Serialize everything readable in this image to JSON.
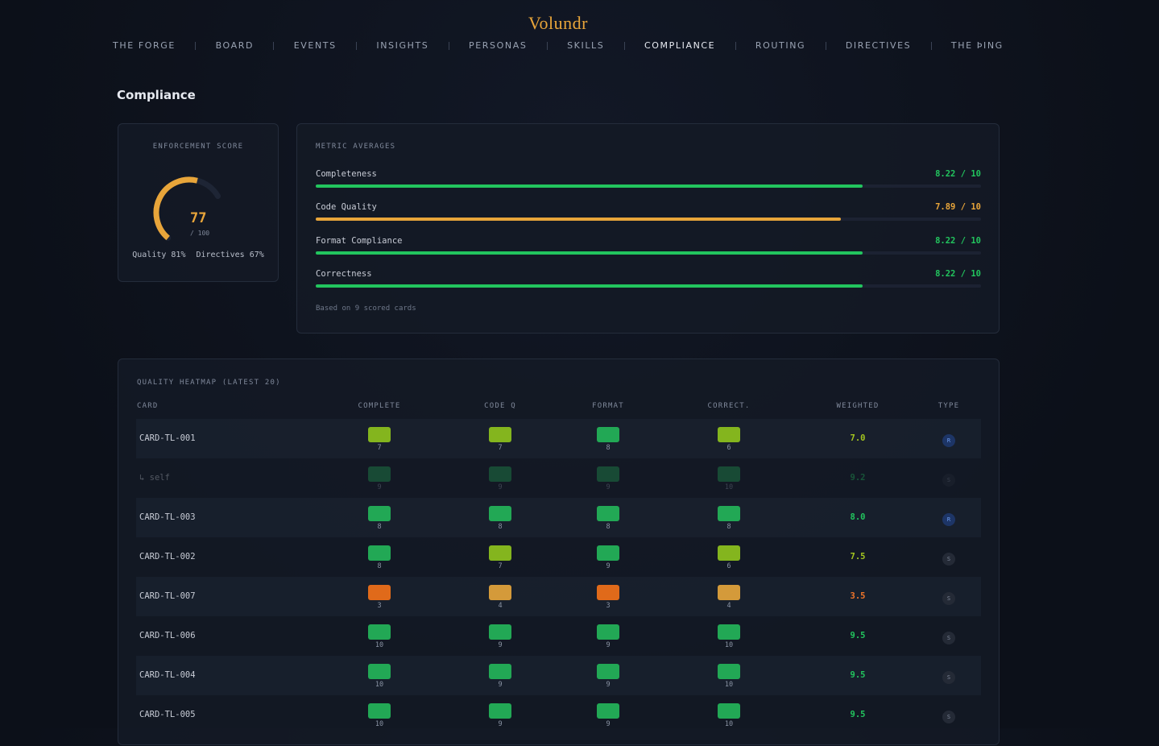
{
  "brand": "Volundr",
  "nav": {
    "items": [
      "THE FORGE",
      "BOARD",
      "EVENTS",
      "INSIGHTS",
      "PERSONAS",
      "SKILLS",
      "COMPLIANCE",
      "ROUTING",
      "DIRECTIVES",
      "THE ÞING"
    ],
    "active": 6
  },
  "page_title": "Compliance",
  "score": {
    "title": "ENFORCEMENT SCORE",
    "value": 77,
    "max": {
      "value": 100,
      "label": "/ 100"
    },
    "stats": [
      "Quality 81%",
      "Directives 67%"
    ]
  },
  "metrics": {
    "title": "METRIC AVERAGES",
    "max": 10,
    "items": [
      {
        "name": "Completeness",
        "value": 8.22,
        "value_label": "8.22 / 10",
        "color": "#22c55e"
      },
      {
        "name": "Code Quality",
        "value": 7.89,
        "value_label": "7.89 / 10",
        "color": "#e8a53a"
      },
      {
        "name": "Format Compliance",
        "value": 8.22,
        "value_label": "8.22 / 10",
        "color": "#22c55e"
      },
      {
        "name": "Correctness",
        "value": 8.22,
        "value_label": "8.22 / 10",
        "color": "#22c55e"
      }
    ],
    "footnote": "Based on 9 scored cards"
  },
  "heatmap": {
    "title": "QUALITY HEATMAP (LATEST 20)",
    "columns": [
      "CARD",
      "COMPLETE",
      "CODE Q",
      "FORMAT",
      "CORRECT.",
      "WEIGHTED",
      "TYPE"
    ],
    "rows": [
      {
        "card": "CARD-TL-001",
        "scores": [
          7,
          7,
          8,
          6
        ],
        "weighted": 7.0,
        "weighted_label": "7.0",
        "type": "R"
      },
      {
        "card": "↳ self",
        "scores": [
          9,
          9,
          9,
          10
        ],
        "weighted": 9.2,
        "type": "S",
        "dim": true
      },
      {
        "card": "CARD-TL-003",
        "scores": [
          8,
          8,
          8,
          8
        ],
        "weighted": 8.0,
        "weighted_label": "8.0",
        "type": "R"
      },
      {
        "card": "CARD-TL-002",
        "scores": [
          8,
          7,
          9,
          6
        ],
        "weighted": 7.5,
        "type": "S"
      },
      {
        "card": "CARD-TL-007",
        "scores": [
          3,
          4,
          3,
          4
        ],
        "weighted": 3.5,
        "type": "S"
      },
      {
        "card": "CARD-TL-006",
        "scores": [
          10,
          9,
          9,
          10
        ],
        "weighted": 9.5,
        "type": "S"
      },
      {
        "card": "CARD-TL-004",
        "scores": [
          10,
          9,
          9,
          10
        ],
        "weighted": 9.5,
        "type": "S"
      },
      {
        "card": "CARD-TL-005",
        "scores": [
          10,
          9,
          9,
          10
        ],
        "weighted": 9.5,
        "type": "S"
      }
    ]
  }
}
